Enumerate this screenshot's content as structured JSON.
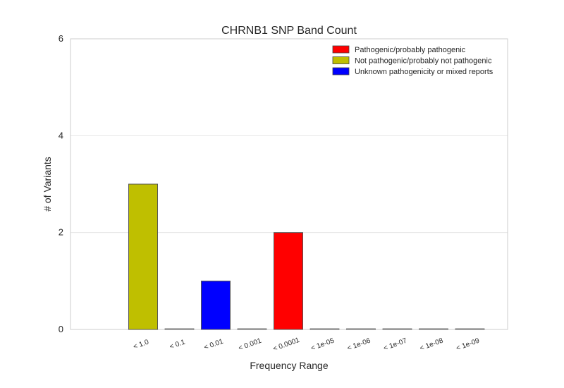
{
  "chart_data": {
    "type": "bar",
    "title": "CHRNB1 SNP Band Count",
    "xlabel": "Frequency Range",
    "ylabel": "# of Variants",
    "ylim": [
      0,
      6
    ],
    "yticks": [
      0,
      2,
      4,
      6
    ],
    "ytick_labels": [
      "0",
      "2",
      "4",
      "6"
    ],
    "grid": true,
    "legend_position": "top-right",
    "categories": [
      "< 1.0",
      "< 0.1",
      "< 0.01",
      "< 0.001",
      "< 0.0001",
      "< 1e-05",
      "< 1e-06",
      "< 1e-07",
      "< 1e-08",
      "< 1e-09"
    ],
    "series": [
      {
        "name": "Pathogenic/probably pathogenic",
        "color": "#ff0000",
        "values": [
          0,
          0,
          0,
          0,
          2,
          0,
          0,
          0,
          0,
          0
        ]
      },
      {
        "name": "Not pathogenic/probably not pathogenic",
        "color": "#bfbf00",
        "values": [
          3,
          0,
          0,
          0,
          0,
          0,
          0,
          0,
          0,
          0
        ]
      },
      {
        "name": "Unknown pathogenicity or mixed reports",
        "color": "#0000ff",
        "values": [
          0,
          0,
          1,
          0,
          0,
          0,
          0,
          0,
          0,
          0
        ]
      }
    ]
  }
}
